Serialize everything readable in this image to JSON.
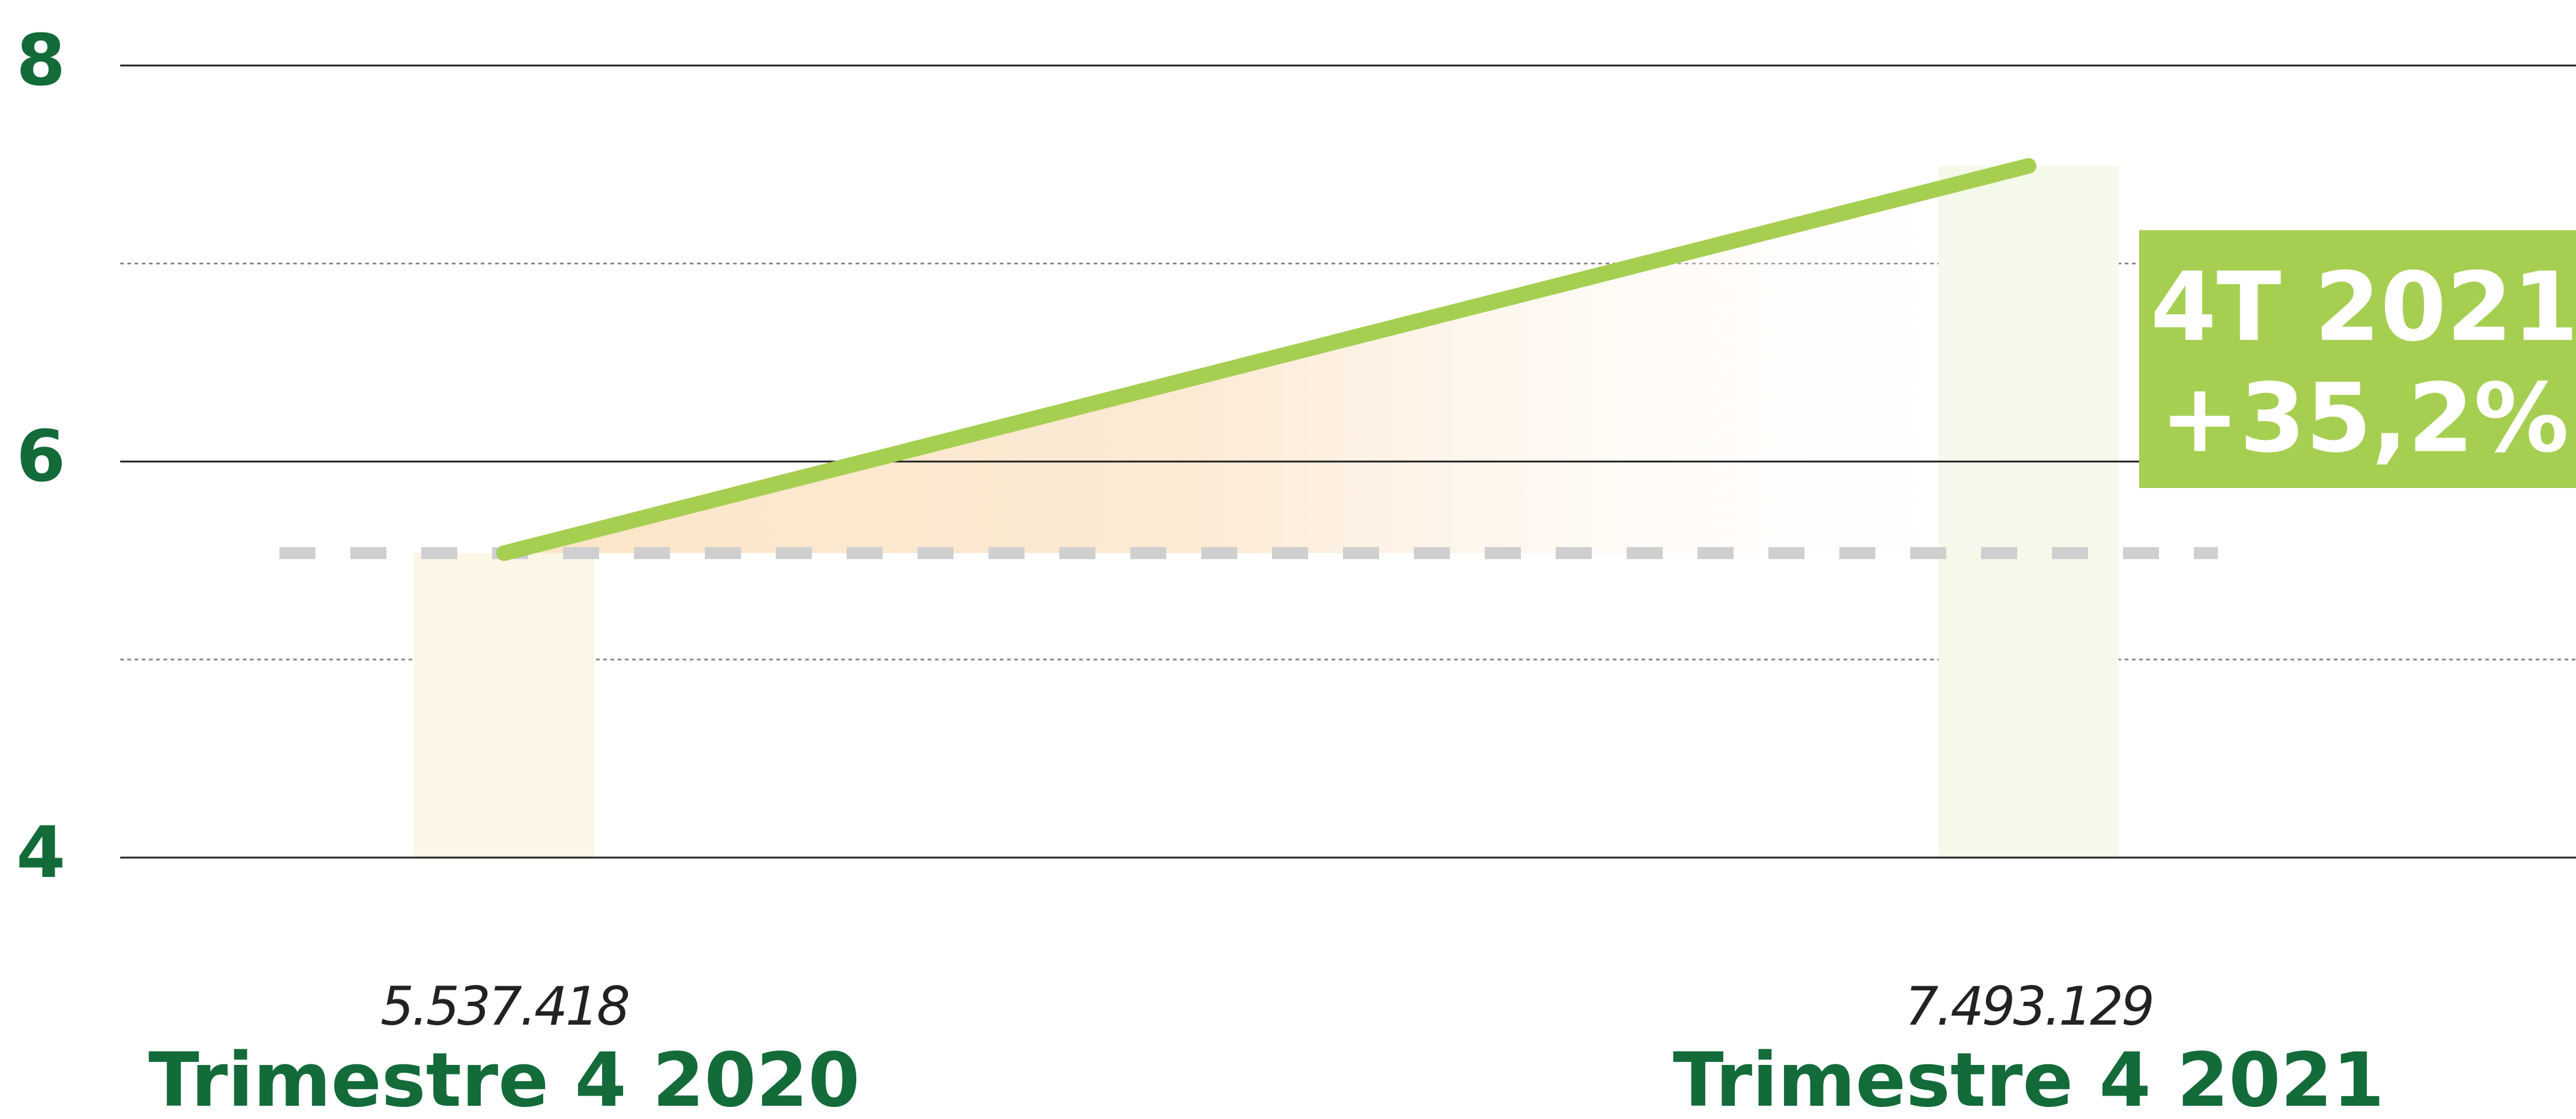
{
  "chart_data": {
    "type": "line",
    "categories": [
      "Trimestre 4 2020",
      "Trimestre 4 2021"
    ],
    "values": [
      5.537418,
      7.493129
    ],
    "value_labels": [
      "5.537.418",
      "7.493.129"
    ],
    "color": "#a6cf52",
    "bar_colors": [
      "#fbf6e6",
      "#f4f9ea"
    ],
    "ylim": [
      4,
      8
    ],
    "yticks": [
      4,
      6,
      8
    ],
    "minor_yticks": [
      5,
      7
    ],
    "grid": true,
    "annotation": {
      "lines": [
        "4T 2021",
        "+35,2%"
      ],
      "color": "#a6cf52"
    }
  }
}
